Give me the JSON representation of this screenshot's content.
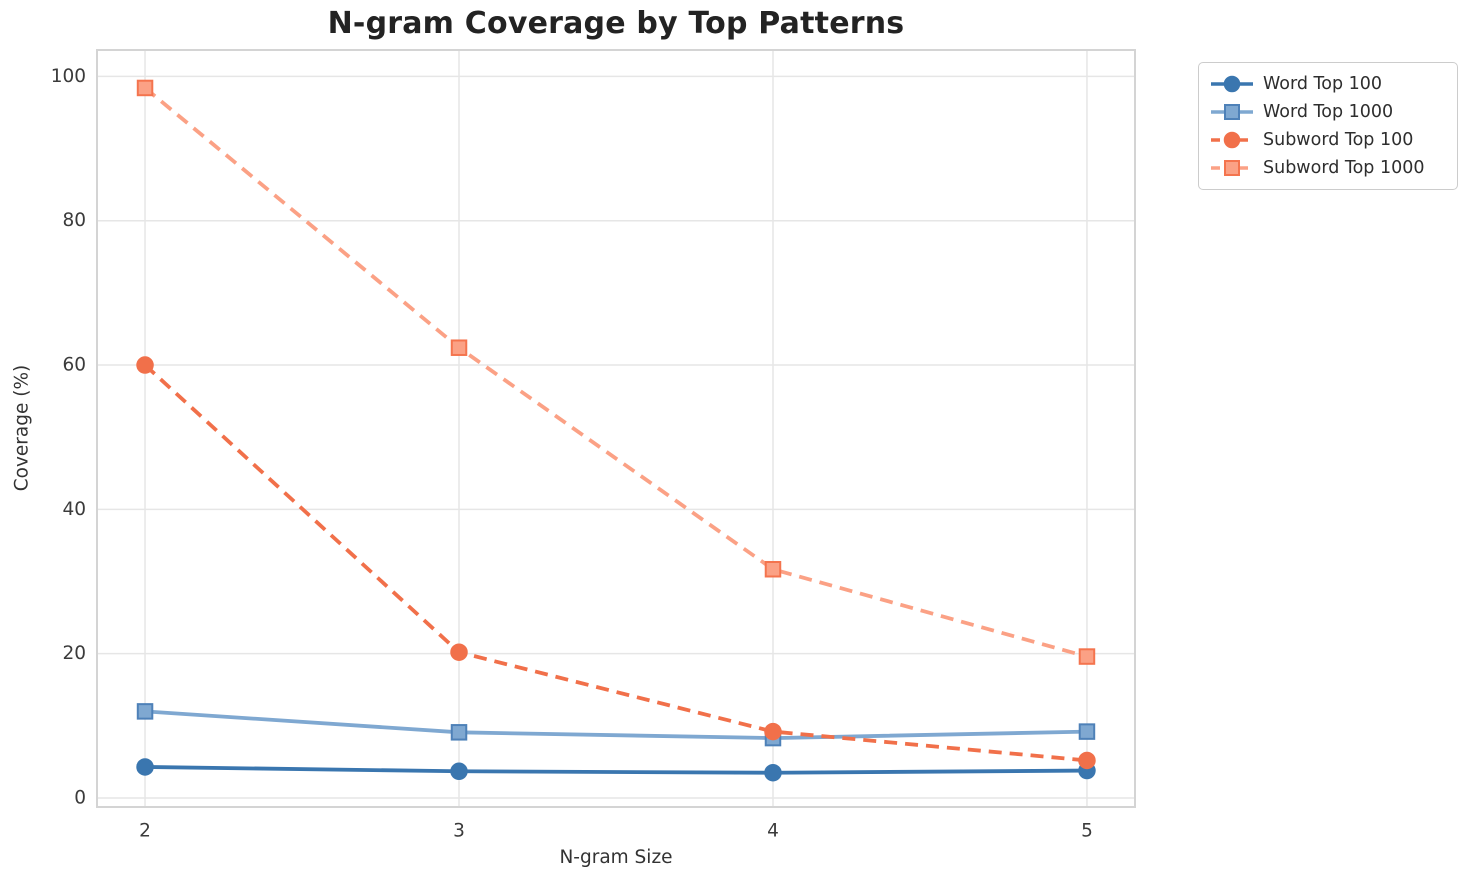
{
  "chart_data": {
    "type": "line",
    "title": "N-gram Coverage by Top Patterns",
    "xlabel": "N-gram Size",
    "ylabel": "Coverage (%)",
    "x": [
      2,
      3,
      4,
      5
    ],
    "xticks": [
      2,
      3,
      4,
      5
    ],
    "yticks": [
      0,
      20,
      40,
      60,
      80,
      100
    ],
    "xlim": [
      1.847,
      5.153
    ],
    "ylim": [
      -1.25,
      103.66
    ],
    "grid": true,
    "legend_position": "outside-upper-right",
    "series": [
      {
        "name": "Word Top 100",
        "values": [
          4.3,
          3.7,
          3.5,
          3.8
        ],
        "color": "#3A76AF",
        "marker": "circle",
        "marker_edge": "#3A76AF",
        "dash": false
      },
      {
        "name": "Word Top 1000",
        "values": [
          12.0,
          9.1,
          8.3,
          9.2
        ],
        "color": "#7FA8D1",
        "marker": "square",
        "marker_edge": "#4E81B8",
        "dash": false
      },
      {
        "name": "Subword Top 100",
        "values": [
          60.0,
          20.2,
          9.2,
          5.2
        ],
        "color": "#F1704A",
        "marker": "circle",
        "marker_edge": "#F1704A",
        "dash": true
      },
      {
        "name": "Subword Top 1000",
        "values": [
          98.4,
          62.4,
          31.7,
          19.6
        ],
        "color": "#FBA185",
        "marker": "square",
        "marker_edge": "#F4744E",
        "dash": true
      }
    ],
    "colors": {
      "grid": "#e6e6e6",
      "frame": "#d4d4d4",
      "tick_text": "#3b3b3b",
      "title_text": "#232323"
    }
  }
}
